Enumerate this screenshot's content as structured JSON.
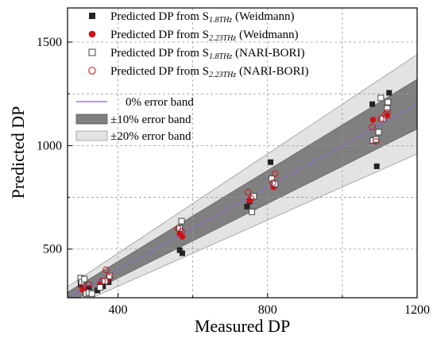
{
  "chart_data": {
    "type": "scatter",
    "xlabel": "Measured DP",
    "ylabel": "Predicted DP",
    "xlim": [
      265,
      1200
    ],
    "ylim": [
      265,
      1665
    ],
    "xticks": [
      400,
      800,
      1200
    ],
    "yticks": [
      500,
      1000,
      1500
    ],
    "minor_xticks": [
      600,
      1000
    ],
    "minor_yticks": [
      750,
      1250
    ],
    "grid": true,
    "legend_position": "top-left",
    "colors": {
      "dark": "#222222",
      "red": "#d0111a",
      "band10": "#808080",
      "band20": "#e3e3e3",
      "ideal": "#8a63c8"
    },
    "series": [
      {
        "name_main": "Predicted DP from S",
        "name_sub": "1.8THz",
        "name_suffix": " (Weidmann)",
        "marker": "square-filled",
        "points": [
          [
            300,
            330
          ],
          [
            310,
            350
          ],
          [
            322,
            310
          ],
          [
            345,
            300
          ],
          [
            360,
            320
          ],
          [
            375,
            340
          ],
          [
            565,
            495
          ],
          [
            572,
            480
          ],
          [
            745,
            705
          ],
          [
            752,
            730
          ],
          [
            808,
            920
          ],
          [
            1080,
            1200
          ],
          [
            1092,
            900
          ],
          [
            1125,
            1255
          ]
        ]
      },
      {
        "name_main": "Predicted DP from S",
        "name_sub": "2.23THz",
        "name_suffix": " (Weidmann)",
        "marker": "circle-filled",
        "points": [
          [
            305,
            305
          ],
          [
            315,
            295
          ],
          [
            352,
            330
          ],
          [
            370,
            345
          ],
          [
            565,
            575
          ],
          [
            572,
            560
          ],
          [
            752,
            735
          ],
          [
            816,
            800
          ],
          [
            1082,
            1125
          ],
          [
            1120,
            1145
          ]
        ]
      },
      {
        "name_main": "Predicted DP from S",
        "name_sub": "1.8THz",
        "name_suffix": "  (NARI-BORI)",
        "marker": "square-open",
        "points": [
          [
            300,
            360
          ],
          [
            303,
            340
          ],
          [
            310,
            355
          ],
          [
            315,
            285
          ],
          [
            322,
            290
          ],
          [
            330,
            285
          ],
          [
            352,
            315
          ],
          [
            365,
            345
          ],
          [
            378,
            370
          ],
          [
            565,
            600
          ],
          [
            570,
            635
          ],
          [
            758,
            680
          ],
          [
            763,
            755
          ],
          [
            811,
            840
          ],
          [
            820,
            815
          ],
          [
            1082,
            1025
          ],
          [
            1090,
            1030
          ],
          [
            1097,
            1065
          ],
          [
            1103,
            1230
          ],
          [
            1108,
            1130
          ],
          [
            1120,
            1180
          ],
          [
            1122,
            1210
          ]
        ]
      },
      {
        "name_main": "Predicted DP from S",
        "name_sub": "2.23THz",
        "name_suffix": "  (NARI-BORI)",
        "marker": "circle-open",
        "points": [
          [
            305,
            320
          ],
          [
            322,
            330
          ],
          [
            358,
            345
          ],
          [
            368,
            400
          ],
          [
            376,
            365
          ],
          [
            560,
            600
          ],
          [
            570,
            585
          ],
          [
            748,
            775
          ],
          [
            756,
            745
          ],
          [
            814,
            820
          ],
          [
            820,
            865
          ],
          [
            1080,
            1090
          ],
          [
            1090,
            1020
          ],
          [
            1103,
            1130
          ],
          [
            1115,
            1150
          ],
          [
            1120,
            1160
          ]
        ]
      }
    ],
    "bands": [
      {
        "label": "0% error band",
        "fraction": 0
      },
      {
        "label": "±10% error band",
        "fraction": 0.1
      },
      {
        "label": "±20% error band",
        "fraction": 0.2
      }
    ]
  }
}
